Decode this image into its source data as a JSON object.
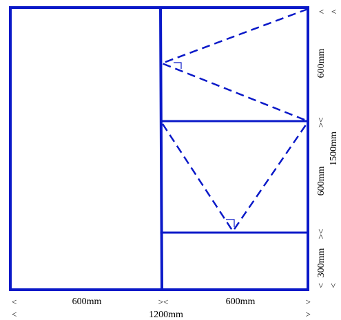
{
  "dimensions": {
    "bottom_left_width": "600mm",
    "bottom_right_width": "600mm",
    "total_width": "1200mm",
    "right_top_height": "600mm",
    "right_middle_height": "600mm",
    "right_bottom_height": "300mm",
    "total_height": "1500mm"
  },
  "arrow_marks": {
    "left": "<",
    "right": ">",
    "joint": "><",
    "up": "^"
  },
  "colors": {
    "line": "#0a19c8"
  }
}
